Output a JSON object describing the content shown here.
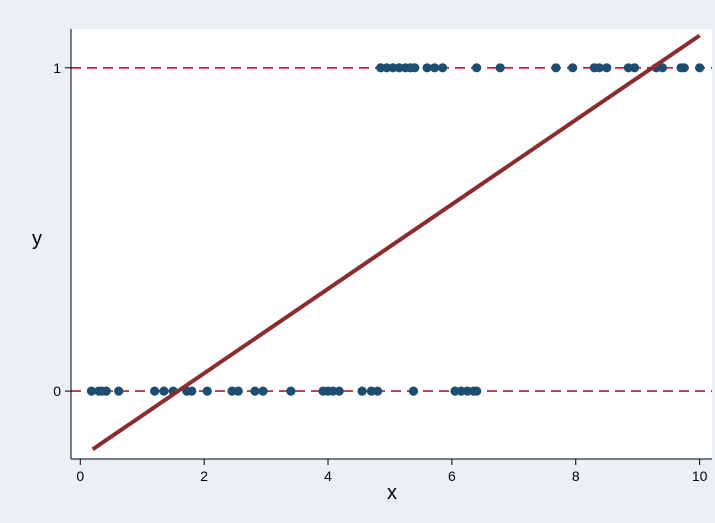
{
  "chart_data": {
    "type": "scatter",
    "title": "",
    "xlabel": "x",
    "ylabel": "y",
    "xlim": [
      -0.15,
      10.2
    ],
    "ylim": [
      -0.21,
      1.12
    ],
    "x_ticks": [
      0,
      2,
      4,
      6,
      8,
      10
    ],
    "y_ticks": [
      0,
      1
    ],
    "grid": false,
    "reference_lines": [
      {
        "y": 0,
        "style": "dashed",
        "color": "#b51b32"
      },
      {
        "y": 1,
        "style": "dashed",
        "color": "#b51b32"
      }
    ],
    "series": [
      {
        "type": "scatter",
        "color": "#1d4e72",
        "points": [
          {
            "x": 0.18,
            "y": 0
          },
          {
            "x": 0.3,
            "y": 0
          },
          {
            "x": 0.35,
            "y": 0
          },
          {
            "x": 0.42,
            "y": 0
          },
          {
            "x": 0.62,
            "y": 0
          },
          {
            "x": 1.2,
            "y": 0
          },
          {
            "x": 1.35,
            "y": 0
          },
          {
            "x": 1.5,
            "y": 0
          },
          {
            "x": 1.72,
            "y": 0
          },
          {
            "x": 1.8,
            "y": 0
          },
          {
            "x": 2.05,
            "y": 0
          },
          {
            "x": 2.45,
            "y": 0
          },
          {
            "x": 2.55,
            "y": 0
          },
          {
            "x": 2.82,
            "y": 0
          },
          {
            "x": 2.95,
            "y": 0
          },
          {
            "x": 3.4,
            "y": 0
          },
          {
            "x": 3.92,
            "y": 0
          },
          {
            "x": 4.0,
            "y": 0
          },
          {
            "x": 4.08,
            "y": 0
          },
          {
            "x": 4.18,
            "y": 0
          },
          {
            "x": 4.55,
            "y": 0
          },
          {
            "x": 4.7,
            "y": 0
          },
          {
            "x": 4.8,
            "y": 0
          },
          {
            "x": 5.38,
            "y": 0
          },
          {
            "x": 6.05,
            "y": 0
          },
          {
            "x": 6.15,
            "y": 0
          },
          {
            "x": 6.25,
            "y": 0
          },
          {
            "x": 6.35,
            "y": 0
          },
          {
            "x": 6.4,
            "y": 0
          },
          {
            "x": 4.85,
            "y": 1
          },
          {
            "x": 4.95,
            "y": 1
          },
          {
            "x": 5.05,
            "y": 1
          },
          {
            "x": 5.15,
            "y": 1
          },
          {
            "x": 5.25,
            "y": 1
          },
          {
            "x": 5.33,
            "y": 1
          },
          {
            "x": 5.4,
            "y": 1
          },
          {
            "x": 5.6,
            "y": 1
          },
          {
            "x": 5.72,
            "y": 1
          },
          {
            "x": 5.85,
            "y": 1
          },
          {
            "x": 6.4,
            "y": 1
          },
          {
            "x": 6.78,
            "y": 1
          },
          {
            "x": 7.68,
            "y": 1
          },
          {
            "x": 7.95,
            "y": 1
          },
          {
            "x": 8.3,
            "y": 1
          },
          {
            "x": 8.38,
            "y": 1
          },
          {
            "x": 8.5,
            "y": 1
          },
          {
            "x": 8.85,
            "y": 1
          },
          {
            "x": 8.95,
            "y": 1
          },
          {
            "x": 9.3,
            "y": 1
          },
          {
            "x": 9.4,
            "y": 1
          },
          {
            "x": 9.7,
            "y": 1
          },
          {
            "x": 9.75,
            "y": 1
          },
          {
            "x": 10.0,
            "y": 1
          }
        ]
      },
      {
        "type": "line",
        "color": "#8b2c2f",
        "points": [
          {
            "x": 0.2,
            "y": -0.18
          },
          {
            "x": 10.0,
            "y": 1.1
          }
        ]
      }
    ]
  }
}
